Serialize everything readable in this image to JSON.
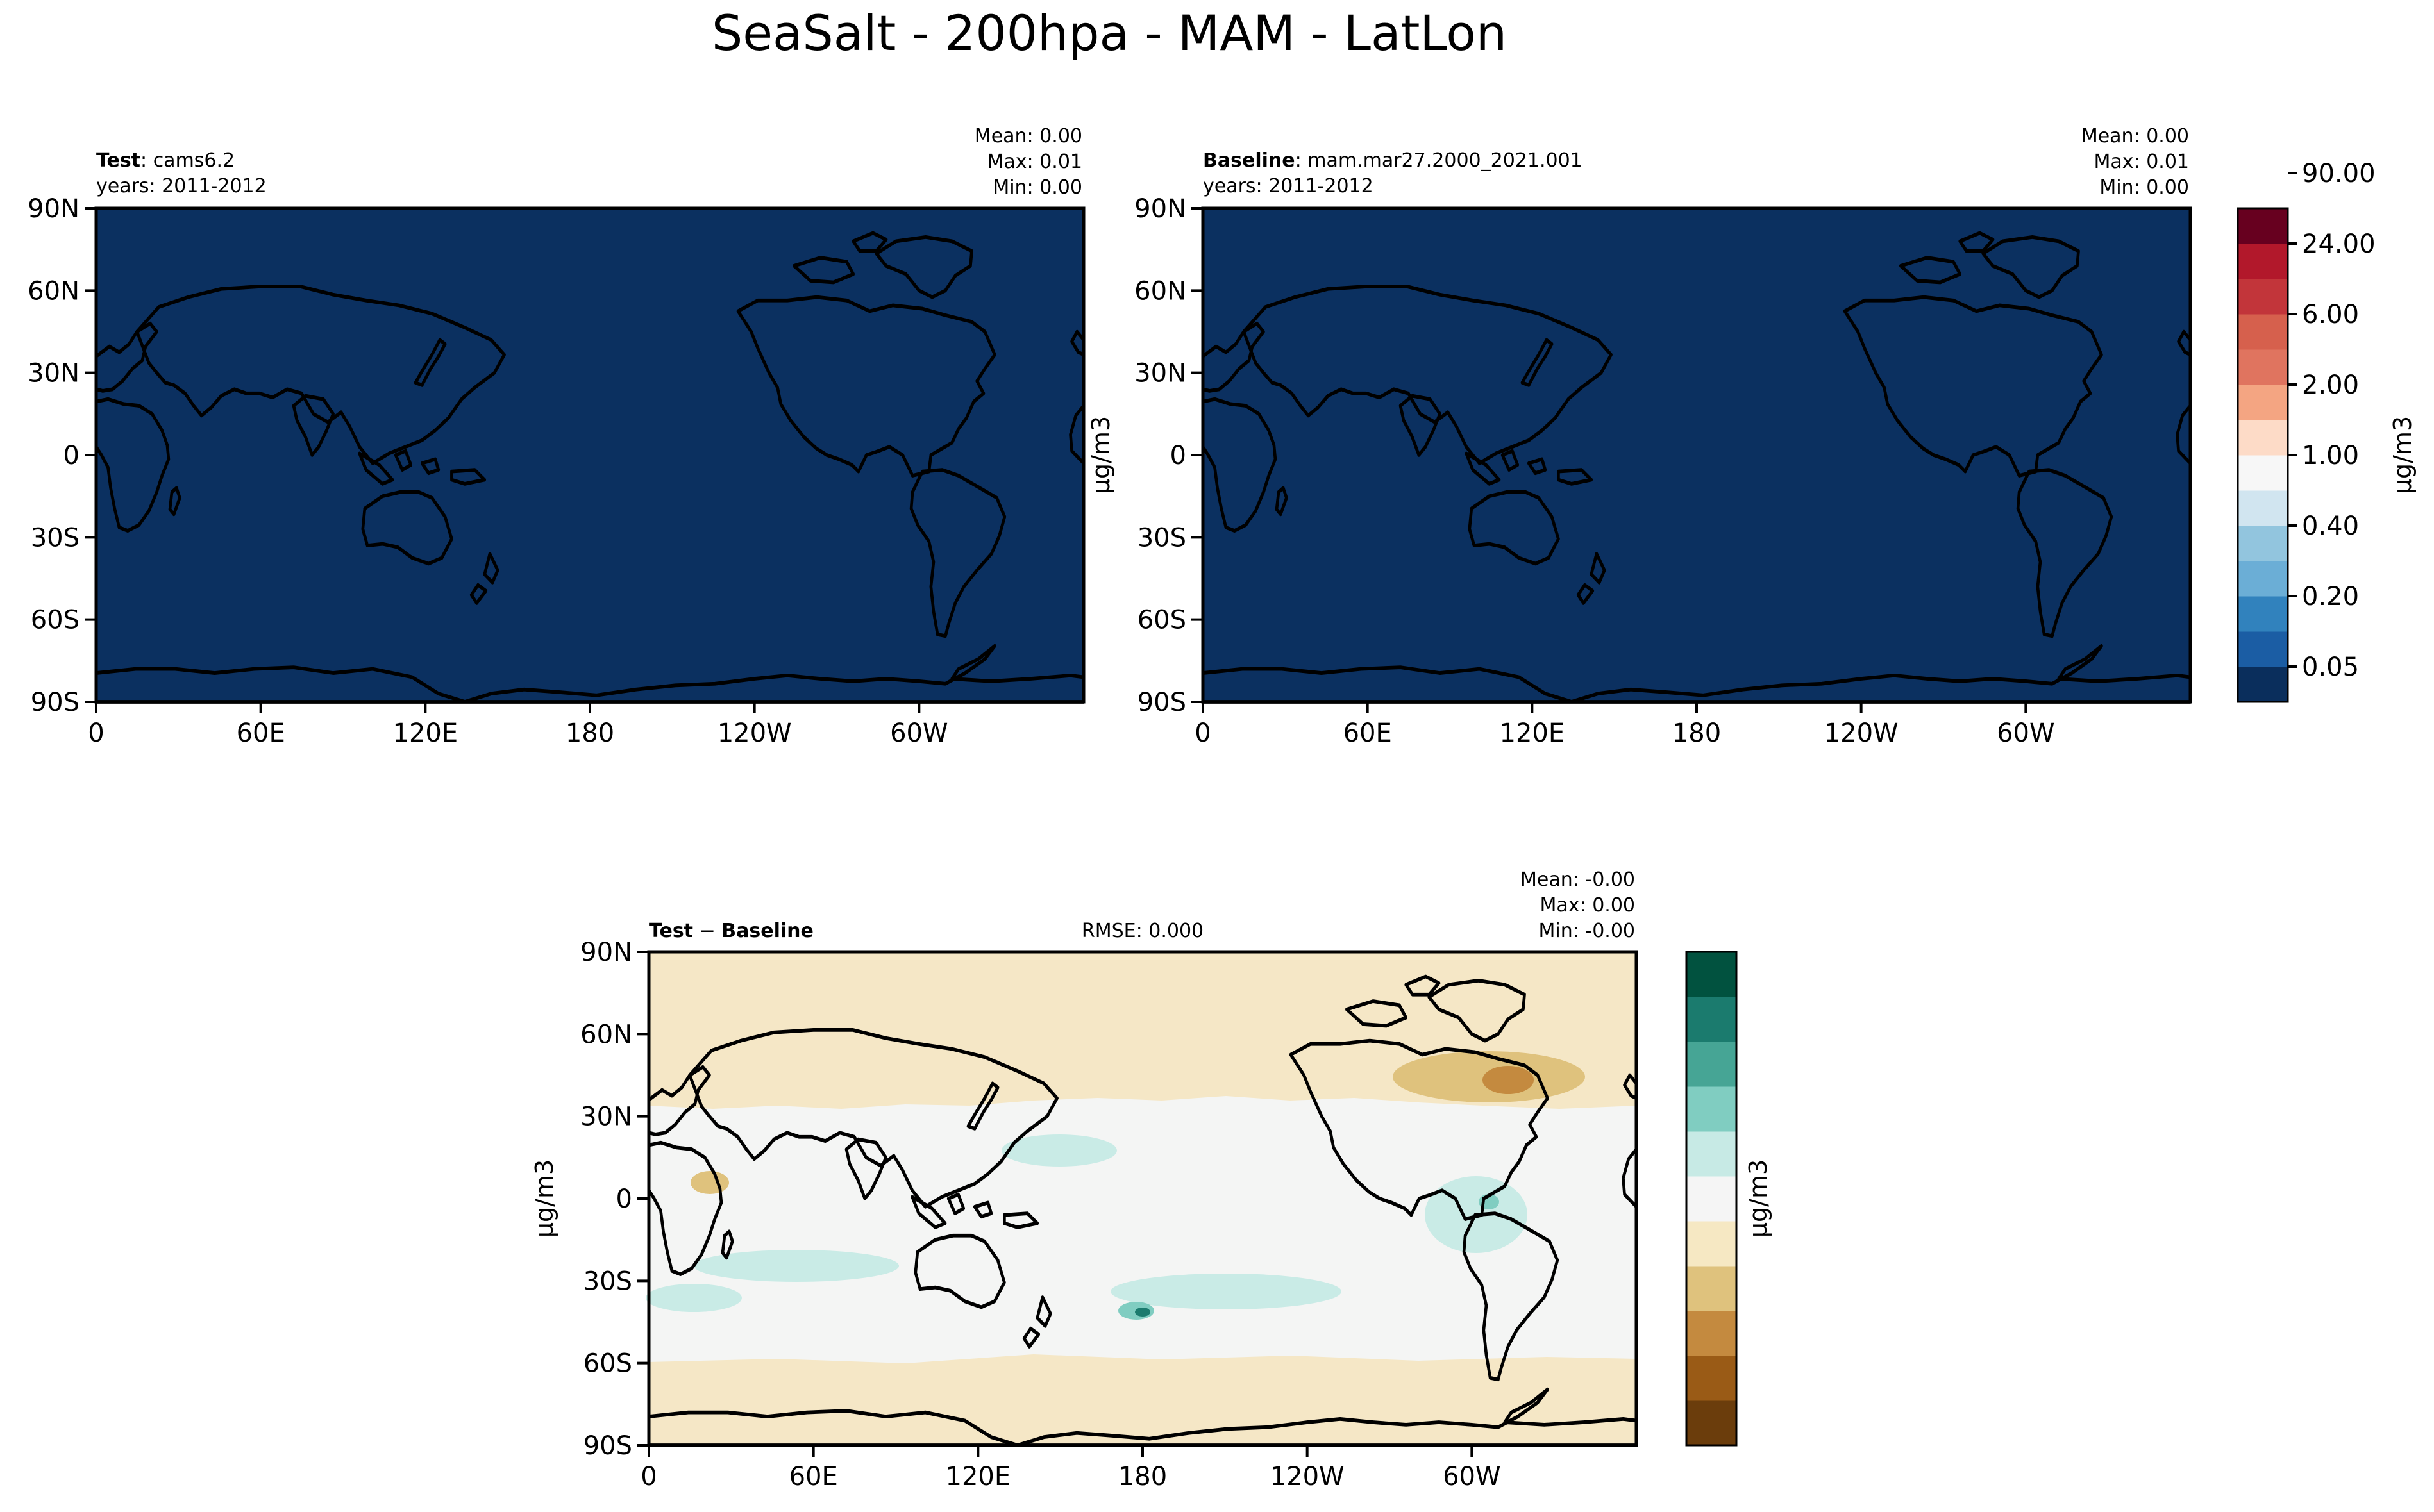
{
  "title": "SeaSalt - 200hpa - MAM - LatLon",
  "axes": {
    "lat_ticks": [
      "90N",
      "60N",
      "30N",
      "0",
      "30S",
      "60S",
      "90S"
    ],
    "lon_ticks": [
      "0",
      "60E",
      "120E",
      "180",
      "120W",
      "60W"
    ]
  },
  "panels": {
    "test": {
      "label_bold": "Test",
      "label_sep": ": ",
      "label_name": "cams6.2",
      "years": "years: 2011-2012",
      "stats": [
        "Mean:  0.00",
        "Max:  0.01",
        "Min:  0.00"
      ],
      "fill_color": "#0b3060"
    },
    "baseline": {
      "label_bold": "Baseline",
      "label_sep": ": ",
      "label_name": "mam.mar27.2000_2021.001",
      "years": "years: 2011-2012",
      "stats": [
        "Mean:  0.00",
        "Max:  0.01",
        "Min:  0.00"
      ],
      "fill_color": "#0b3060",
      "ylabel": "μg/m3"
    },
    "diff": {
      "label_bold": "Test",
      "label_minus": " − ",
      "label_bold2": "Baseline",
      "rmse": "RMSE: 0.000",
      "stats": [
        "Mean: -0.00",
        "Max:  0.00",
        "Min: -0.00"
      ],
      "ylabel": "μg/m3",
      "bg_color": "#f4f5f4",
      "neg_color": "#f5e7c6",
      "pos_color": "#c9ebe6"
    }
  },
  "colorbar_main": {
    "colors": [
      "#0a2e5c",
      "#1b5da4",
      "#3182bd",
      "#6baed6",
      "#92c5de",
      "#d1e5f0",
      "#f7f7f7",
      "#fddbc7",
      "#f4a582",
      "#e0745f",
      "#d6604d",
      "#c2353a",
      "#b2182b",
      "#67001f"
    ],
    "tick_labels": [
      "0.05",
      "0.20",
      "0.40",
      "1.00",
      "2.00",
      "6.00",
      "24.00",
      "90.00"
    ],
    "label": "μg/m3"
  },
  "colorbar_diff": {
    "colors": [
      "#6b3d0c",
      "#9a5b16",
      "#c48a3f",
      "#dfc27d",
      "#f6e8c3",
      "#f5f5f5",
      "#c7eae5",
      "#80cdc1",
      "#46a595",
      "#1b7b6e",
      "#01523f"
    ],
    "label": "μg/m3"
  }
}
